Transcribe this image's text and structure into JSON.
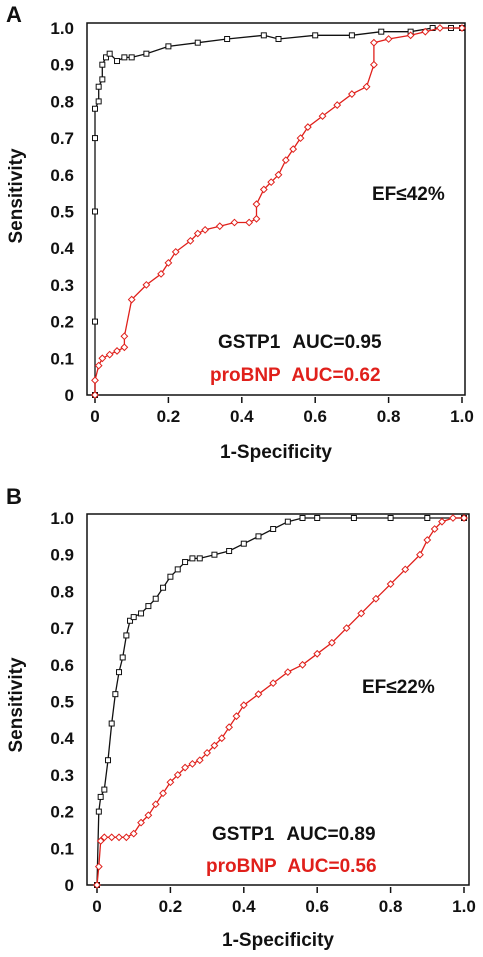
{
  "chart_data": [
    {
      "type": "line",
      "panel_label": "A",
      "xlabel": "1-Specificity",
      "ylabel": "Sensitivity",
      "xlim": [
        0,
        1
      ],
      "ylim": [
        0,
        1
      ],
      "x_ticks": [
        "0",
        "0.2",
        "0.4",
        "0.6",
        "0.8",
        "1.0"
      ],
      "y_ticks": [
        "0",
        "0.1",
        "0.2",
        "0.3",
        "0.4",
        "0.5",
        "0.6",
        "0.7",
        "0.8",
        "0.9",
        "1.0"
      ],
      "grid": false,
      "annotation": "EF≤42%",
      "auc_labels": [
        {
          "name": "GSTP1",
          "auc": "AUC=0.95",
          "color": "#111111"
        },
        {
          "name": "proBNP",
          "auc": "AUC=0.62",
          "color": "#e0201b"
        }
      ],
      "series": [
        {
          "name": "GSTP1",
          "color": "#111111",
          "x": [
            0,
            0,
            0,
            0,
            0,
            0.01,
            0.01,
            0.02,
            0.02,
            0.03,
            0.04,
            0.06,
            0.08,
            0.1,
            0.14,
            0.2,
            0.28,
            0.36,
            0.46,
            0.5,
            0.6,
            0.7,
            0.78,
            0.86,
            0.92,
            0.97,
            1.0
          ],
          "y": [
            0,
            0.2,
            0.5,
            0.7,
            0.78,
            0.8,
            0.84,
            0.86,
            0.9,
            0.92,
            0.93,
            0.91,
            0.92,
            0.92,
            0.93,
            0.95,
            0.96,
            0.97,
            0.98,
            0.97,
            0.98,
            0.98,
            0.99,
            0.99,
            1.0,
            1.0,
            1.0
          ]
        },
        {
          "name": "proBNP",
          "color": "#e0201b",
          "x": [
            0,
            0,
            0.01,
            0.02,
            0.04,
            0.06,
            0.08,
            0.08,
            0.1,
            0.14,
            0.18,
            0.2,
            0.22,
            0.26,
            0.28,
            0.3,
            0.34,
            0.38,
            0.42,
            0.44,
            0.44,
            0.46,
            0.48,
            0.5,
            0.52,
            0.54,
            0.56,
            0.58,
            0.62,
            0.66,
            0.7,
            0.74,
            0.76,
            0.76,
            0.8,
            0.86,
            0.9,
            0.94,
            1.0
          ],
          "y": [
            0,
            0.04,
            0.08,
            0.1,
            0.11,
            0.12,
            0.13,
            0.16,
            0.26,
            0.3,
            0.33,
            0.36,
            0.39,
            0.42,
            0.44,
            0.45,
            0.46,
            0.47,
            0.47,
            0.48,
            0.52,
            0.56,
            0.58,
            0.6,
            0.64,
            0.67,
            0.7,
            0.73,
            0.76,
            0.79,
            0.82,
            0.84,
            0.9,
            0.96,
            0.97,
            0.98,
            0.99,
            1.0,
            1.0
          ]
        }
      ]
    },
    {
      "type": "line",
      "panel_label": "B",
      "xlabel": "1-Specificity",
      "ylabel": "Sensitivity",
      "xlim": [
        0,
        1
      ],
      "ylim": [
        0,
        1
      ],
      "x_ticks": [
        "0",
        "0.2",
        "0.4",
        "0.6",
        "0.8",
        "1.0"
      ],
      "y_ticks": [
        "0",
        "0.1",
        "0.2",
        "0.3",
        "0.4",
        "0.5",
        "0.6",
        "0.7",
        "0.8",
        "0.9",
        "1.0"
      ],
      "grid": false,
      "annotation": "EF≤22%",
      "auc_labels": [
        {
          "name": "GSTP1",
          "auc": "AUC=0.89",
          "color": "#111111"
        },
        {
          "name": "proBNP",
          "auc": "AUC=0.56",
          "color": "#e0201b"
        }
      ],
      "series": [
        {
          "name": "GSTP1",
          "color": "#111111",
          "x": [
            0,
            0.005,
            0.01,
            0.02,
            0.03,
            0.04,
            0.05,
            0.06,
            0.07,
            0.08,
            0.09,
            0.1,
            0.12,
            0.14,
            0.16,
            0.18,
            0.2,
            0.22,
            0.24,
            0.26,
            0.28,
            0.32,
            0.36,
            0.4,
            0.44,
            0.48,
            0.52,
            0.56,
            0.6,
            0.7,
            0.8,
            0.9,
            1.0
          ],
          "y": [
            0,
            0.2,
            0.24,
            0.26,
            0.34,
            0.44,
            0.52,
            0.58,
            0.62,
            0.68,
            0.72,
            0.73,
            0.74,
            0.76,
            0.78,
            0.81,
            0.84,
            0.86,
            0.88,
            0.89,
            0.89,
            0.9,
            0.91,
            0.93,
            0.95,
            0.97,
            0.99,
            1.0,
            1.0,
            1.0,
            1.0,
            1.0,
            1.0
          ]
        },
        {
          "name": "proBNP",
          "color": "#e0201b",
          "x": [
            0,
            0.005,
            0.01,
            0.02,
            0.04,
            0.06,
            0.08,
            0.1,
            0.12,
            0.14,
            0.16,
            0.18,
            0.2,
            0.22,
            0.24,
            0.26,
            0.28,
            0.3,
            0.32,
            0.34,
            0.36,
            0.38,
            0.4,
            0.44,
            0.48,
            0.52,
            0.56,
            0.6,
            0.64,
            0.68,
            0.72,
            0.76,
            0.8,
            0.84,
            0.88,
            0.9,
            0.92,
            0.94,
            0.97,
            1.0
          ],
          "y": [
            0,
            0.05,
            0.12,
            0.13,
            0.13,
            0.13,
            0.13,
            0.14,
            0.17,
            0.19,
            0.22,
            0.25,
            0.28,
            0.3,
            0.32,
            0.33,
            0.34,
            0.36,
            0.38,
            0.4,
            0.43,
            0.46,
            0.49,
            0.52,
            0.55,
            0.58,
            0.6,
            0.63,
            0.66,
            0.7,
            0.74,
            0.78,
            0.82,
            0.86,
            0.9,
            0.94,
            0.97,
            0.99,
            1.0,
            1.0
          ]
        }
      ]
    }
  ]
}
